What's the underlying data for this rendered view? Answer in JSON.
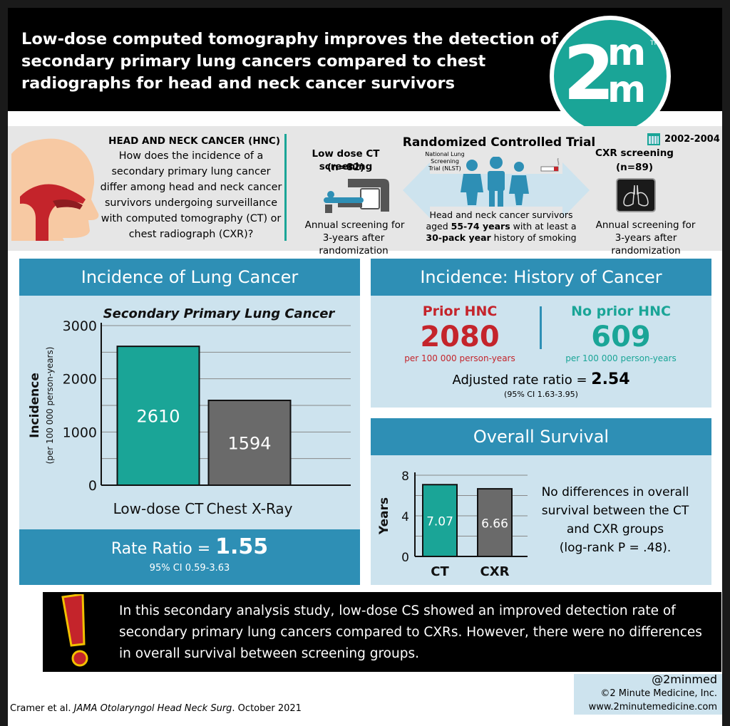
{
  "title": "Low-dose computed tomography improves the detection of secondary primary lung cancers compared to chest radiographs for head and neck cancer survivors",
  "logo": {
    "big": "2",
    "m": "m",
    "tm": "TM"
  },
  "study": {
    "heading": "HEAD AND NECK CANCER (HNC)",
    "question": "How does the incidence of a secondary primary lung cancer differ among head and neck cancer survivors undergoing surveillance with computed tomography (CT) or chest radiograph (CXR)?",
    "rct_title": "Randomized Controlled Trial",
    "years": "2002-2004",
    "ct_arm": {
      "name": "Low dose CT screening",
      "n": "(n=82)",
      "desc1": "Annual screening for",
      "desc2": "3-years after randomization"
    },
    "cxr_arm": {
      "name": "CXR screening",
      "n": "(n=89)",
      "desc1": "Annual screening for",
      "desc2": "3-years after randomization"
    },
    "nlst": [
      "National Lung",
      "Screening",
      "Trial (NLST)"
    ],
    "pop": {
      "line1": "Head and neck cancer survivors",
      "line2a": "aged ",
      "line2b": "55-74 years",
      "line2c": " with at least a",
      "line3a": "30-pack year",
      "line3b": " history of smoking"
    }
  },
  "incidence_panel": {
    "header": "Incidence of Lung Cancer",
    "rate_label": "Rate Ratio = ",
    "rate_value": "1.55",
    "ci": "95% CI 0.59-3.63"
  },
  "history_panel": {
    "header": "Incidence: History of Cancer",
    "prior_label": "Prior HNC",
    "prior_value": "2080",
    "prior_unit": "per 100 000 person-years",
    "noprior_label": "No prior HNC",
    "noprior_value": "609",
    "noprior_unit": "per 100 000 person-years",
    "adj_label": "Adjusted rate ratio = ",
    "adj_value": "2.54",
    "adj_ci": "(95% CI 1.63-3.95)"
  },
  "survival_panel": {
    "header": "Overall Survival",
    "text": [
      "No differences in overall",
      "survival between the CT",
      "and CXR groups",
      "(log-rank P = .48)."
    ]
  },
  "conclusion": "In this secondary analysis study, low-dose CS showed an improved detection rate of secondary primary lung cancers compared to CXRs. However, there were no differences in overall survival between screening groups.",
  "footer": {
    "citation_pre": "Cramer et al. ",
    "citation_journal": "JAMA Otolaryngol Head Neck Surg",
    "citation_post": ". October 2021",
    "handle": "@2minmed",
    "company": "©2 Minute Medicine, Inc.",
    "url": "www.2minutemedicine.com"
  },
  "colors": {
    "ct": "#1aa597",
    "cxr": "#6a6a6a",
    "blue": "#2e8fb5",
    "red": "#c4242b"
  },
  "chart_data": [
    {
      "type": "bar",
      "title": "Secondary Primary Lung Cancer",
      "categories": [
        "Low-dose CT",
        "Chest X-Ray"
      ],
      "values": [
        2610,
        1594
      ],
      "ylabel": "Incidence",
      "ylabel_sub": "(per 100 000 person-years)",
      "ylim": [
        0,
        3000
      ],
      "yticks": [
        0,
        1000,
        2000,
        3000
      ],
      "grid": true
    },
    {
      "type": "bar",
      "categories": [
        "CT",
        "CXR"
      ],
      "values": [
        7.07,
        6.66
      ],
      "ylabel": "Years",
      "ylim": [
        0,
        8
      ],
      "yticks": [
        0,
        4,
        8
      ],
      "grid": true
    }
  ]
}
